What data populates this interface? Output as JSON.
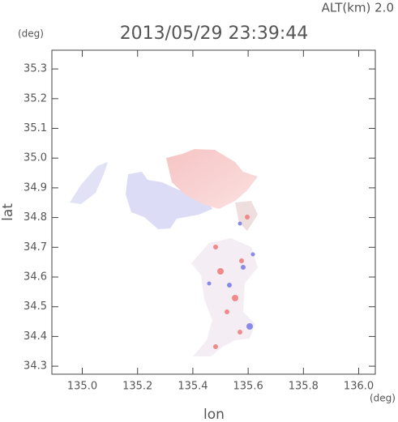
{
  "chart_data": {
    "type": "map",
    "title": "2013/05/29 23:39:44",
    "subtitle": "ALT(km) 2.0",
    "x_label": "lon",
    "y_label": "lat",
    "x_unit": "(deg)",
    "y_unit": "(deg)",
    "xlim": [
      134.89,
      136.06
    ],
    "ylim": [
      34.273,
      35.363
    ],
    "xticks": [
      {
        "value": 135.0,
        "label": "135.0"
      },
      135.2,
      135.4,
      135.6,
      135.8,
      {
        "value": 136.0,
        "label": "136.0"
      }
    ],
    "yticks": [
      34.3,
      34.4,
      34.5,
      34.6,
      34.7,
      34.8,
      34.9,
      {
        "value": 35.0,
        "label": "35.0"
      },
      35.1,
      35.2,
      35.3
    ]
  }
}
